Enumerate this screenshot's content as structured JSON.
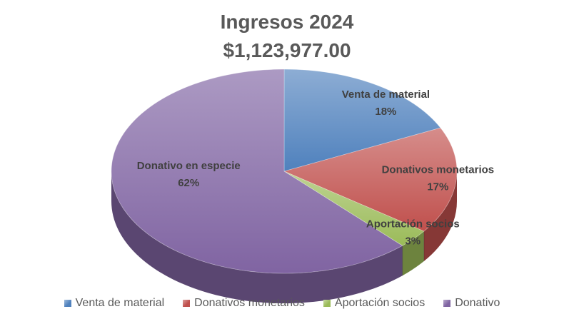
{
  "chart_data": {
    "type": "pie",
    "title": "Ingresos 2024",
    "subtitle": "$1,123,977.00",
    "three_d": true,
    "legend_position": "bottom",
    "slices": [
      {
        "name": "Venta de material",
        "legend": "Venta de material",
        "percent_label": "18%",
        "value": 18,
        "color": "#4f81bd"
      },
      {
        "name": "Donativos monetarios",
        "legend": "Donativos monetarios",
        "percent_label": "17%",
        "value": 17,
        "color": "#c0504d"
      },
      {
        "name": "Aportación socios",
        "legend": "Aportación socios",
        "percent_label": "3%",
        "value": 3,
        "color": "#9bbb59"
      },
      {
        "name": "Donativo en especie",
        "legend": "Donativo",
        "percent_label": "62%",
        "value": 62,
        "color": "#8064a2"
      }
    ]
  }
}
